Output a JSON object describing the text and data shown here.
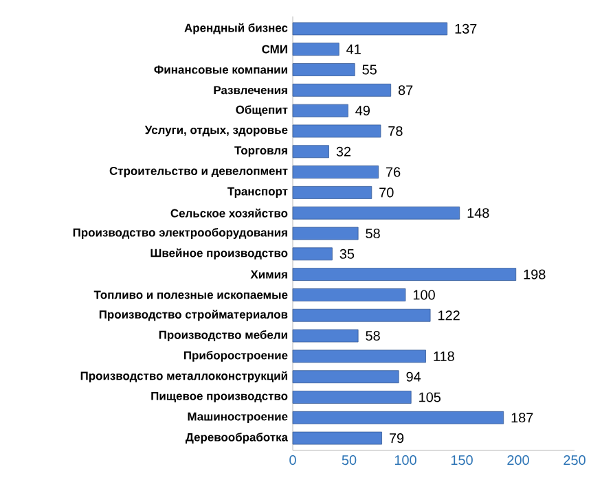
{
  "chart_data": {
    "type": "bar",
    "orientation": "horizontal",
    "categories": [
      "Арендный бизнес",
      "СМИ",
      "Финансовые компании",
      "Развлечения",
      "Общепит",
      "Услуги, отдых, здоровье",
      "Торговля",
      "Строительство и девелопмент",
      "Транспорт",
      "Сельское хозяйство",
      "Производство электрооборудования",
      "Швейное производство",
      "Химия",
      "Топливо и полезные ископаемые",
      "Производство стройматериалов",
      "Производство мебели",
      "Приборостроение",
      "Производство металлоконструкций",
      "Пищевое производство",
      "Машиностроение",
      "Деревообработка"
    ],
    "values": [
      137,
      41,
      55,
      87,
      49,
      78,
      32,
      76,
      70,
      148,
      58,
      35,
      198,
      100,
      122,
      58,
      118,
      94,
      105,
      187,
      79
    ],
    "color": "#4f81d4",
    "xlim": [
      0,
      250
    ],
    "xticks": [
      0,
      50,
      100,
      150,
      200,
      250
    ],
    "data_labels": true
  }
}
